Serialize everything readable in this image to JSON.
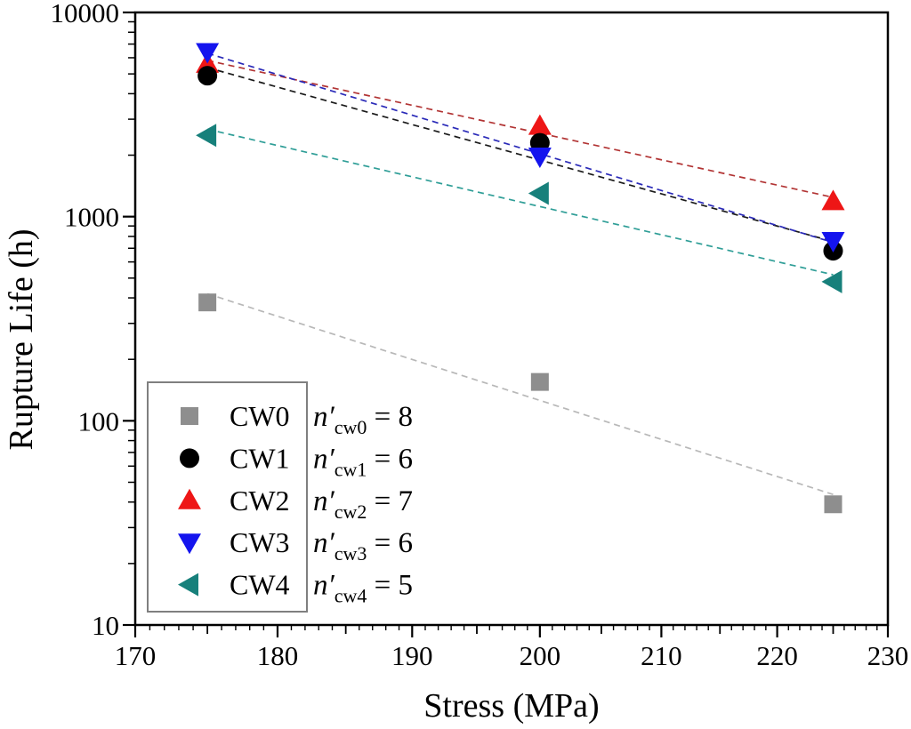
{
  "chart_data": {
    "type": "scatter",
    "title": "",
    "xlabel": "Stress (MPa)",
    "ylabel": "Rupture Life (h)",
    "xscale": "log",
    "yscale": "log",
    "xlim": [
      170,
      230
    ],
    "ylim": [
      10,
      10000
    ],
    "x_tick_labels": [
      "170",
      "180",
      "190",
      "200",
      "210",
      "220",
      "230"
    ],
    "x_ticks": [
      170,
      180,
      190,
      200,
      210,
      220,
      230
    ],
    "y_tick_labels": [
      "10",
      "100",
      "1000",
      "10000"
    ],
    "y_ticks": [
      10,
      100,
      1000,
      10000
    ],
    "grid": false,
    "legend_position": "lower-left",
    "fit_lines": true,
    "x": [
      175,
      200,
      225
    ],
    "series": [
      {
        "name": "CW0",
        "marker": "square",
        "marker_color": "#8e8e8e",
        "line_color": "#b8b8b8",
        "values": [
          380,
          155,
          39
        ],
        "n_prime": 8,
        "exponent_label": {
          "base": "n′",
          "sub": "cw0",
          "rest": " = 8"
        }
      },
      {
        "name": "CW1",
        "marker": "circle",
        "marker_color": "#000000",
        "line_color": "#1a1a1a",
        "values": [
          4900,
          2300,
          680
        ],
        "n_prime": 6,
        "exponent_label": {
          "base": "n′",
          "sub": "cw1",
          "rest": " = 6"
        }
      },
      {
        "name": "CW2",
        "marker": "triangle-up",
        "marker_color": "#ee1616",
        "line_color": "#b23434",
        "values": [
          5600,
          2780,
          1190
        ],
        "n_prime": 7,
        "exponent_label": {
          "base": "n′",
          "sub": "cw2",
          "rest": " = 7"
        }
      },
      {
        "name": "CW3",
        "marker": "triangle-down",
        "marker_color": "#1414ee",
        "line_color": "#2a2ab8",
        "values": [
          6400,
          1970,
          760
        ],
        "n_prime": 6,
        "exponent_label": {
          "base": "n′",
          "sub": "cw3",
          "rest": " = 6"
        }
      },
      {
        "name": "CW4",
        "marker": "triangle-left",
        "marker_color": "#17807b",
        "line_color": "#2f9e97",
        "values": [
          2500,
          1300,
          480
        ],
        "n_prime": 5,
        "exponent_label": {
          "base": "n′",
          "sub": "cw4",
          "rest": " = 5"
        }
      }
    ],
    "colors": {
      "frame": "#000000",
      "legend_border": "#7f7f7f",
      "background": "#ffffff"
    }
  }
}
